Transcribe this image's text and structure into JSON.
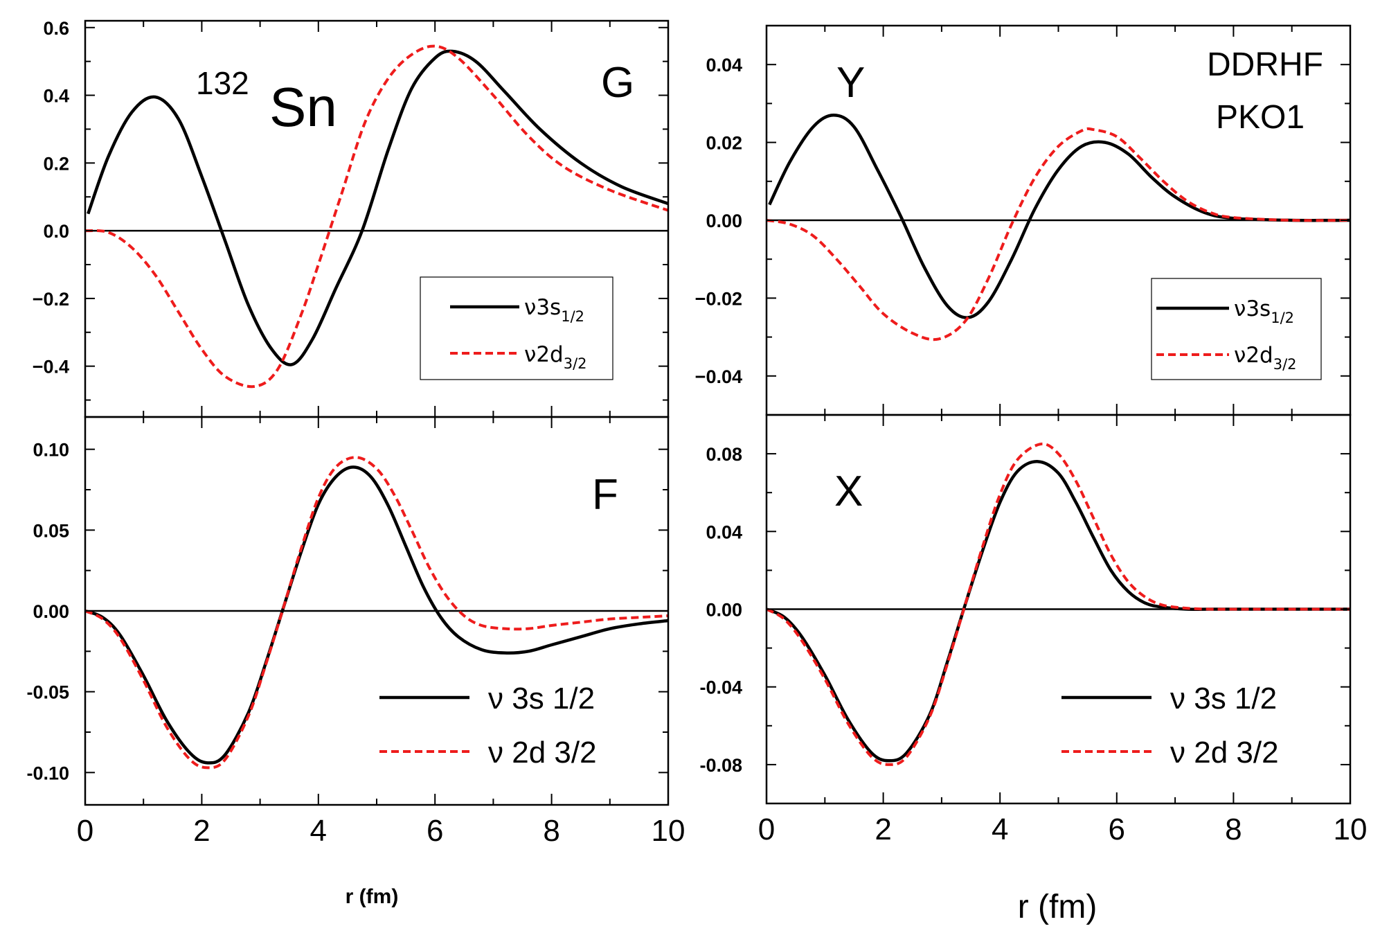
{
  "figure": {
    "nucleus_mass": "132",
    "nucleus_symbol": "Sn",
    "method_line1": "DDRHF",
    "method_line2": "PKO1",
    "xlabel_left": "r (fm)",
    "xlabel_right": "r (fm)"
  },
  "colors": {
    "solid": "#000000",
    "dashed": "#ee1c1c"
  },
  "chart_data": [
    {
      "id": "G",
      "type": "line",
      "label": "G",
      "xlim": [
        0,
        10
      ],
      "ylim": [
        -0.55,
        0.62
      ],
      "yticks": [
        -0.4,
        -0.2,
        0.0,
        0.2,
        0.4,
        0.6
      ],
      "ytick_labels": [
        "−0.4",
        "−0.2",
        "0.0",
        "0.2",
        "0.4",
        "0.6"
      ],
      "xticks": [
        0,
        2,
        4,
        6,
        8,
        10
      ],
      "xtick_labels": [],
      "legend": {
        "placement": "center-right",
        "items": [
          "ν3s",
          "ν2d"
        ],
        "subs": [
          "1/2",
          "3/2"
        ]
      },
      "series": [
        {
          "name": "ν3s1/2",
          "style": "solid",
          "x": [
            0.05,
            0.4,
            0.8,
            1.2,
            1.6,
            2.0,
            2.4,
            2.8,
            3.2,
            3.55,
            3.9,
            4.3,
            4.75,
            5.2,
            5.6,
            6.0,
            6.3,
            6.7,
            7.2,
            7.8,
            8.5,
            9.2,
            10.0
          ],
          "y": [
            0.05,
            0.22,
            0.35,
            0.395,
            0.33,
            0.16,
            -0.03,
            -0.22,
            -0.35,
            -0.395,
            -0.32,
            -0.17,
            0.0,
            0.24,
            0.42,
            0.51,
            0.53,
            0.5,
            0.41,
            0.3,
            0.2,
            0.13,
            0.08
          ]
        },
        {
          "name": "ν2d3/2",
          "style": "dashed",
          "x": [
            0.0,
            0.4,
            0.8,
            1.2,
            1.6,
            2.0,
            2.4,
            2.9,
            3.3,
            3.7,
            4.0,
            4.4,
            4.8,
            5.2,
            5.6,
            6.0,
            6.4,
            7.0,
            7.6,
            8.2,
            9.0,
            10.0
          ],
          "y": [
            0.0,
            -0.005,
            -0.05,
            -0.13,
            -0.24,
            -0.35,
            -0.43,
            -0.46,
            -0.41,
            -0.25,
            -0.1,
            0.11,
            0.32,
            0.45,
            0.52,
            0.545,
            0.51,
            0.4,
            0.28,
            0.19,
            0.12,
            0.06
          ]
        }
      ]
    },
    {
      "id": "Y",
      "type": "line",
      "label": "Y",
      "xlim": [
        0,
        10
      ],
      "ylim": [
        -0.05,
        0.05
      ],
      "yticks": [
        -0.04,
        -0.02,
        0.0,
        0.02,
        0.04
      ],
      "ytick_labels": [
        "−0.04",
        "−0.02",
        "0.00",
        "0.02",
        "0.04"
      ],
      "xticks": [
        0,
        2,
        4,
        6,
        8,
        10
      ],
      "xtick_labels": [],
      "legend": {
        "placement": "center-right",
        "items": [
          "ν3s",
          "ν2d"
        ],
        "subs": [
          "1/2",
          "3/2"
        ]
      },
      "series": [
        {
          "name": "ν3s1/2",
          "style": "solid",
          "x": [
            0.05,
            0.4,
            0.8,
            1.15,
            1.5,
            1.9,
            2.3,
            2.7,
            3.1,
            3.45,
            3.8,
            4.2,
            4.6,
            5.0,
            5.4,
            5.8,
            6.2,
            6.6,
            7.0,
            7.5,
            8.0,
            9.0,
            10.0
          ],
          "y": [
            0.004,
            0.015,
            0.024,
            0.027,
            0.024,
            0.013,
            0.001,
            -0.012,
            -0.022,
            -0.025,
            -0.021,
            -0.01,
            0.003,
            0.013,
            0.019,
            0.02,
            0.017,
            0.011,
            0.006,
            0.002,
            0.0005,
            0.0,
            0.0
          ]
        },
        {
          "name": "ν2d3/2",
          "style": "dashed",
          "x": [
            0.0,
            0.4,
            0.8,
            1.2,
            1.6,
            2.0,
            2.5,
            2.95,
            3.4,
            3.8,
            4.2,
            4.6,
            5.0,
            5.4,
            5.6,
            6.0,
            6.4,
            6.8,
            7.2,
            7.6,
            8.0,
            9.0,
            10.0
          ],
          "y": [
            0.0,
            -0.001,
            -0.004,
            -0.01,
            -0.017,
            -0.024,
            -0.029,
            -0.0305,
            -0.026,
            -0.015,
            -0.001,
            0.011,
            0.019,
            0.023,
            0.0233,
            0.0215,
            0.016,
            0.01,
            0.005,
            0.002,
            0.0007,
            0.0,
            0.0
          ]
        }
      ]
    },
    {
      "id": "F",
      "type": "line",
      "label": "F",
      "xlim": [
        0,
        10
      ],
      "ylim": [
        -0.12,
        0.12
      ],
      "yticks": [
        -0.1,
        -0.05,
        0.0,
        0.05,
        0.1
      ],
      "ytick_labels": [
        "-0.10",
        "-0.05",
        "0.00",
        "0.05",
        "0.10"
      ],
      "xticks": [
        0,
        2,
        4,
        6,
        8,
        10
      ],
      "xtick_labels": [
        "0",
        "2",
        "4",
        "6",
        "8",
        "10"
      ],
      "legend": {
        "placement": "bottom-right",
        "items": [
          "ν 3s 1/2",
          "ν 2d 3/2"
        ]
      },
      "series": [
        {
          "name": "ν 3s 1/2",
          "style": "solid",
          "x": [
            0.0,
            0.3,
            0.6,
            1.0,
            1.4,
            1.8,
            2.1,
            2.4,
            2.8,
            3.1,
            3.4,
            3.7,
            4.0,
            4.3,
            4.6,
            4.9,
            5.2,
            5.5,
            5.8,
            6.1,
            6.4,
            6.8,
            7.2,
            7.6,
            8.0,
            8.5,
            9.0,
            9.5,
            10.0
          ],
          "y": [
            0.0,
            -0.004,
            -0.015,
            -0.04,
            -0.068,
            -0.088,
            -0.094,
            -0.089,
            -0.063,
            -0.032,
            0.002,
            0.036,
            0.066,
            0.083,
            0.089,
            0.083,
            0.065,
            0.04,
            0.015,
            -0.004,
            -0.016,
            -0.024,
            -0.026,
            -0.025,
            -0.021,
            -0.016,
            -0.011,
            -0.008,
            -0.006
          ]
        },
        {
          "name": "ν 2d 3/2",
          "style": "dashed",
          "x": [
            0.0,
            0.3,
            0.6,
            1.0,
            1.4,
            1.8,
            2.1,
            2.4,
            2.8,
            3.1,
            3.4,
            3.7,
            4.0,
            4.3,
            4.65,
            5.0,
            5.3,
            5.6,
            5.9,
            6.2,
            6.5,
            6.8,
            7.2,
            7.6,
            8.0,
            8.5,
            9.0,
            9.5,
            10.0
          ],
          "y": [
            0.0,
            -0.005,
            -0.017,
            -0.043,
            -0.072,
            -0.092,
            -0.097,
            -0.092,
            -0.065,
            -0.033,
            0.002,
            0.038,
            0.07,
            0.089,
            0.095,
            0.088,
            0.072,
            0.05,
            0.027,
            0.009,
            -0.003,
            -0.009,
            -0.011,
            -0.011,
            -0.009,
            -0.007,
            -0.005,
            -0.004,
            -0.003
          ]
        }
      ]
    },
    {
      "id": "X",
      "type": "line",
      "label": "X",
      "xlim": [
        0,
        10
      ],
      "ylim": [
        -0.1,
        0.1
      ],
      "yticks": [
        -0.08,
        -0.04,
        0.0,
        0.04,
        0.08
      ],
      "ytick_labels": [
        "-0.08",
        "-0.04",
        "0.00",
        "0.04",
        "0.08"
      ],
      "xticks": [
        0,
        2,
        4,
        6,
        8,
        10
      ],
      "xtick_labels": [
        "0",
        "2",
        "4",
        "6",
        "8",
        "10"
      ],
      "legend": {
        "placement": "bottom-right",
        "items": [
          "ν 3s 1/2",
          "ν 2d 3/2"
        ]
      },
      "series": [
        {
          "name": "ν 3s 1/2",
          "style": "solid",
          "x": [
            0.0,
            0.3,
            0.6,
            1.0,
            1.4,
            1.8,
            2.1,
            2.4,
            2.8,
            3.1,
            3.4,
            3.7,
            4.0,
            4.3,
            4.65,
            5.0,
            5.3,
            5.6,
            5.9,
            6.2,
            6.5,
            6.8,
            7.2,
            7.6,
            8.0,
            9.0,
            10.0
          ],
          "y": [
            0.0,
            -0.004,
            -0.014,
            -0.034,
            -0.057,
            -0.074,
            -0.078,
            -0.074,
            -0.054,
            -0.027,
            0.002,
            0.03,
            0.055,
            0.071,
            0.076,
            0.07,
            0.055,
            0.037,
            0.02,
            0.009,
            0.003,
            0.001,
            0.0,
            0.0,
            0.0,
            0.0,
            0.0
          ]
        },
        {
          "name": "ν 2d 3/2",
          "style": "dashed",
          "x": [
            0.0,
            0.3,
            0.6,
            1.0,
            1.4,
            1.8,
            2.1,
            2.4,
            2.8,
            3.1,
            3.4,
            3.7,
            4.0,
            4.3,
            4.7,
            5.0,
            5.3,
            5.6,
            5.9,
            6.2,
            6.5,
            6.8,
            7.2,
            7.6,
            8.0,
            9.0,
            10.0
          ],
          "y": [
            0.0,
            -0.005,
            -0.016,
            -0.036,
            -0.059,
            -0.076,
            -0.08,
            -0.076,
            -0.055,
            -0.028,
            0.002,
            0.032,
            0.059,
            0.077,
            0.085,
            0.08,
            0.066,
            0.047,
            0.028,
            0.014,
            0.006,
            0.002,
            0.0005,
            0.0,
            0.0,
            0.0,
            0.0
          ]
        }
      ]
    }
  ]
}
